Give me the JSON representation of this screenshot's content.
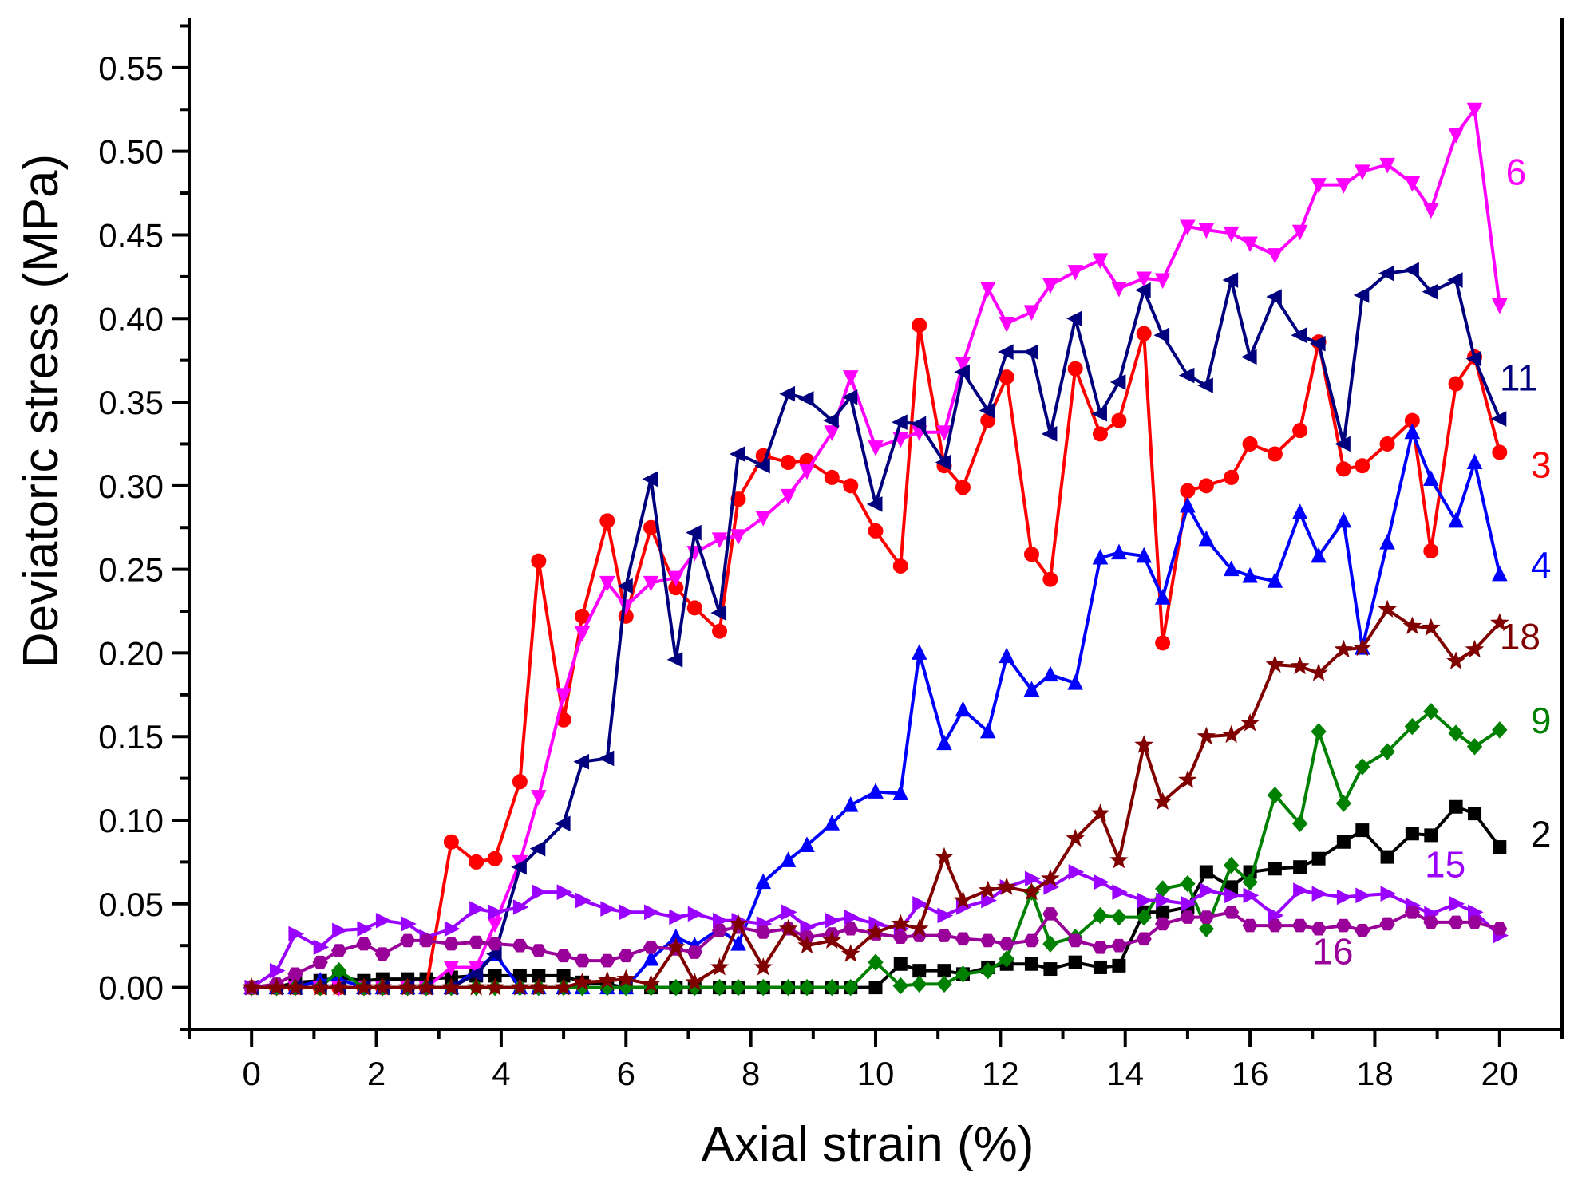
{
  "chart_data": {
    "type": "line",
    "title": "",
    "xlabel": "Axial strain (%)",
    "ylabel": "Deviatoric stress (MPa)",
    "xlim": [
      -1,
      21
    ],
    "ylim": [
      -0.025,
      0.58
    ],
    "xticks": [
      0,
      2,
      4,
      6,
      8,
      10,
      12,
      14,
      16,
      18,
      20
    ],
    "xtick_labels": [
      "0",
      "2",
      "4",
      "6",
      "8",
      "10",
      "12",
      "14",
      "16",
      "18",
      "20"
    ],
    "yticks": [
      0,
      0.05,
      0.1,
      0.15,
      0.2,
      0.25,
      0.3,
      0.35,
      0.4,
      0.45,
      0.5,
      0.55
    ],
    "ytick_labels": [
      "0.00",
      "0.05",
      "0.10",
      "0.15",
      "0.20",
      "0.25",
      "0.30",
      "0.35",
      "0.40",
      "0.45",
      "0.50",
      "0.55"
    ],
    "grid": false,
    "legend": "labels at line ends",
    "series": [
      {
        "name": "2",
        "label": "2",
        "color": "#000000",
        "marker": "square",
        "label_at": [
          20.5,
          0.084
        ],
        "x": [
          0,
          0.4,
          0.7,
          1.1,
          1.4,
          1.8,
          2.1,
          2.5,
          2.8,
          3.2,
          3.6,
          3.9,
          4.3,
          4.6,
          5.0,
          5.3,
          5.7,
          6.0,
          6.4,
          6.8,
          7.1,
          7.5,
          7.8,
          8.2,
          8.6,
          8.9,
          9.3,
          9.6,
          10.0,
          10.4,
          10.7,
          11.1,
          11.4,
          11.8,
          12.1,
          12.5,
          12.8,
          13.2,
          13.6,
          13.9,
          14.3,
          14.6,
          15.0,
          15.3,
          15.7,
          16.0,
          16.4,
          16.8,
          17.1,
          17.5,
          17.8,
          18.2,
          18.6,
          18.9,
          19.3,
          19.6,
          20.0
        ],
        "y": [
          0,
          0,
          0.003,
          0.004,
          0.006,
          0.004,
          0.005,
          0.005,
          0.005,
          0.006,
          0.007,
          0.007,
          0.007,
          0.007,
          0.007,
          0.003,
          0.002,
          0,
          0,
          0,
          0,
          0,
          0,
          0,
          0,
          0,
          0,
          0,
          0,
          0.014,
          0.01,
          0.01,
          0.008,
          0.012,
          0.014,
          0.014,
          0.011,
          0.015,
          0.012,
          0.013,
          0.045,
          0.045,
          0.048,
          0.069,
          0.06,
          0.069,
          0.071,
          0.072,
          0.077,
          0.087,
          0.094,
          0.078,
          0.092,
          0.091,
          0.108,
          0.104,
          0.084
        ]
      },
      {
        "name": "3",
        "label": "3",
        "color": "#ff0000",
        "marker": "circle",
        "label_at": [
          20.5,
          0.305
        ],
        "x": [
          0,
          0.4,
          0.7,
          1.1,
          1.4,
          1.8,
          2.1,
          2.5,
          2.8,
          3.2,
          3.6,
          3.9,
          4.3,
          4.6,
          5.0,
          5.3,
          5.7,
          6.0,
          6.4,
          6.8,
          7.1,
          7.5,
          7.8,
          8.2,
          8.6,
          8.9,
          9.3,
          9.6,
          10.0,
          10.4,
          10.7,
          11.1,
          11.4,
          11.8,
          12.1,
          12.5,
          12.8,
          13.2,
          13.6,
          13.9,
          14.3,
          14.6,
          15.0,
          15.3,
          15.7,
          16.0,
          16.4,
          16.8,
          17.1,
          17.5,
          17.8,
          18.2,
          18.6,
          18.9,
          19.3,
          19.6,
          20.0
        ],
        "y": [
          0,
          0,
          0,
          0,
          0,
          0,
          0,
          0,
          0,
          0.087,
          0.075,
          0.077,
          0.123,
          0.255,
          0.16,
          0.222,
          0.279,
          0.222,
          0.275,
          0.239,
          0.227,
          0.213,
          0.292,
          0.318,
          0.314,
          0.315,
          0.305,
          0.3,
          0.273,
          0.252,
          0.396,
          0.312,
          0.299,
          0.339,
          0.365,
          0.259,
          0.244,
          0.37,
          0.331,
          0.339,
          0.391,
          0.206,
          0.297,
          0.3,
          0.305,
          0.325,
          0.319,
          0.333,
          0.386,
          0.31,
          0.312,
          0.325,
          0.339,
          0.261,
          0.361,
          0.377,
          0.32
        ]
      },
      {
        "name": "4",
        "label": "4",
        "color": "#0000ff",
        "marker": "triangle-up",
        "label_at": [
          20.5,
          0.245
        ],
        "x": [
          0,
          0.4,
          0.7,
          1.1,
          1.4,
          1.8,
          2.1,
          2.5,
          2.8,
          3.2,
          3.6,
          3.9,
          4.3,
          4.6,
          5.0,
          5.3,
          5.7,
          6.0,
          6.4,
          6.8,
          7.1,
          7.5,
          7.8,
          8.2,
          8.6,
          8.9,
          9.3,
          9.6,
          10.0,
          10.4,
          10.7,
          11.1,
          11.4,
          11.8,
          12.1,
          12.5,
          12.8,
          13.2,
          13.6,
          13.9,
          14.3,
          14.6,
          15.0,
          15.3,
          15.7,
          16.0,
          16.4,
          16.8,
          17.1,
          17.5,
          17.8,
          18.2,
          18.6,
          18.9,
          19.3,
          19.6,
          20.0
        ],
        "y": [
          0,
          0,
          0,
          0.004,
          0.005,
          0,
          0,
          0,
          0,
          0,
          0.01,
          0.02,
          0,
          0,
          0,
          0,
          0,
          0,
          0.017,
          0.03,
          0.025,
          0.035,
          0.026,
          0.063,
          0.076,
          0.085,
          0.098,
          0.109,
          0.117,
          0.116,
          0.2,
          0.146,
          0.166,
          0.153,
          0.198,
          0.178,
          0.187,
          0.182,
          0.257,
          0.26,
          0.258,
          0.233,
          0.288,
          0.268,
          0.25,
          0.246,
          0.243,
          0.284,
          0.258,
          0.279,
          0.203,
          0.266,
          0.332,
          0.304,
          0.279,
          0.314,
          0.247
        ]
      },
      {
        "name": "6",
        "label": "6",
        "color": "#ff00ff",
        "marker": "triangle-down",
        "label_at": [
          20.1,
          0.48
        ],
        "x": [
          0,
          0.4,
          0.7,
          1.1,
          1.4,
          1.8,
          2.1,
          2.5,
          2.8,
          3.2,
          3.6,
          3.9,
          4.3,
          4.6,
          5.0,
          5.3,
          5.7,
          6.0,
          6.4,
          6.8,
          7.1,
          7.5,
          7.8,
          8.2,
          8.6,
          8.9,
          9.3,
          9.6,
          10.0,
          10.4,
          10.7,
          11.1,
          11.4,
          11.8,
          12.1,
          12.5,
          12.8,
          13.2,
          13.6,
          13.9,
          14.3,
          14.6,
          15.0,
          15.3,
          15.7,
          16.0,
          16.4,
          16.8,
          17.1,
          17.5,
          17.8,
          18.2,
          18.6,
          18.9,
          19.3,
          19.6,
          20.0
        ],
        "y": [
          0,
          0,
          0,
          0,
          0,
          0,
          0,
          0,
          0,
          0.012,
          0.012,
          0.038,
          0.075,
          0.114,
          0.175,
          0.212,
          0.242,
          0.228,
          0.242,
          0.245,
          0.26,
          0.268,
          0.27,
          0.281,
          0.294,
          0.309,
          0.332,
          0.365,
          0.323,
          0.328,
          0.332,
          0.332,
          0.373,
          0.418,
          0.397,
          0.404,
          0.42,
          0.428,
          0.435,
          0.418,
          0.424,
          0.423,
          0.455,
          0.453,
          0.451,
          0.445,
          0.438,
          0.452,
          0.48,
          0.48,
          0.488,
          0.492,
          0.481,
          0.465,
          0.51,
          0.525,
          0.408
        ]
      },
      {
        "name": "9",
        "label": "9",
        "color": "#008000",
        "marker": "diamond",
        "label_at": [
          20.5,
          0.152
        ],
        "x": [
          0,
          0.4,
          0.7,
          1.1,
          1.4,
          1.8,
          2.1,
          2.5,
          2.8,
          3.2,
          3.6,
          3.9,
          4.3,
          4.6,
          5.0,
          5.3,
          5.7,
          6.0,
          6.4,
          6.8,
          7.1,
          7.5,
          7.8,
          8.2,
          8.6,
          8.9,
          9.3,
          9.6,
          10.0,
          10.4,
          10.7,
          11.1,
          11.4,
          11.8,
          12.1,
          12.5,
          12.8,
          13.2,
          13.6,
          13.9,
          14.3,
          14.6,
          15.0,
          15.3,
          15.7,
          16.0,
          16.4,
          16.8,
          17.1,
          17.5,
          17.8,
          18.2,
          18.6,
          18.9,
          19.3,
          19.6,
          20.0
        ],
        "y": [
          0,
          0,
          0,
          0,
          0.01,
          0,
          0,
          0,
          0,
          0,
          0,
          0,
          0,
          0,
          0,
          0,
          0,
          0,
          0,
          0,
          0,
          0,
          0,
          0,
          0,
          0,
          0,
          0,
          0.015,
          0.001,
          0.002,
          0.002,
          0.008,
          0.01,
          0.017,
          0.057,
          0.026,
          0.03,
          0.043,
          0.042,
          0.042,
          0.059,
          0.062,
          0.035,
          0.073,
          0.063,
          0.115,
          0.098,
          0.153,
          0.11,
          0.132,
          0.141,
          0.156,
          0.165,
          0.152,
          0.144,
          0.154
        ]
      },
      {
        "name": "11",
        "label": "11",
        "color": "#00007f",
        "marker": "triangle-left",
        "label_at": [
          20.0,
          0.357
        ],
        "x": [
          0,
          0.4,
          0.7,
          1.1,
          1.4,
          1.8,
          2.1,
          2.5,
          2.8,
          3.2,
          3.6,
          3.9,
          4.3,
          4.6,
          5.0,
          5.3,
          5.7,
          6.0,
          6.4,
          6.8,
          7.1,
          7.5,
          7.8,
          8.2,
          8.6,
          8.9,
          9.3,
          9.6,
          10.0,
          10.4,
          10.7,
          11.1,
          11.4,
          11.8,
          12.1,
          12.5,
          12.8,
          13.2,
          13.6,
          13.9,
          14.3,
          14.6,
          15.0,
          15.3,
          15.7,
          16.0,
          16.4,
          16.8,
          17.1,
          17.5,
          17.8,
          18.2,
          18.6,
          18.9,
          19.3,
          19.6,
          20.0
        ],
        "y": [
          0,
          0,
          0,
          0,
          0,
          0,
          0,
          0,
          0,
          0,
          0.008,
          0.02,
          0.072,
          0.083,
          0.098,
          0.135,
          0.137,
          0.24,
          0.304,
          0.196,
          0.272,
          0.224,
          0.319,
          0.312,
          0.355,
          0.352,
          0.339,
          0.353,
          0.289,
          0.338,
          0.337,
          0.314,
          0.368,
          0.345,
          0.38,
          0.38,
          0.331,
          0.4,
          0.343,
          0.362,
          0.417,
          0.39,
          0.366,
          0.36,
          0.423,
          0.377,
          0.413,
          0.39,
          0.385,
          0.325,
          0.414,
          0.427,
          0.429,
          0.416,
          0.423,
          0.376,
          0.34
        ]
      },
      {
        "name": "15",
        "label": "15",
        "color": "#9900ff",
        "marker": "triangle-right",
        "label_at": [
          18.8,
          0.066
        ],
        "x": [
          0,
          0.4,
          0.7,
          1.1,
          1.4,
          1.8,
          2.1,
          2.5,
          2.8,
          3.2,
          3.6,
          3.9,
          4.3,
          4.6,
          5.0,
          5.3,
          5.7,
          6.0,
          6.4,
          6.8,
          7.1,
          7.5,
          7.8,
          8.2,
          8.6,
          8.9,
          9.3,
          9.6,
          10.0,
          10.4,
          10.7,
          11.1,
          11.4,
          11.8,
          12.1,
          12.5,
          12.8,
          13.2,
          13.6,
          13.9,
          14.3,
          14.6,
          15.0,
          15.3,
          15.7,
          16.0,
          16.4,
          16.8,
          17.1,
          17.5,
          17.8,
          18.2,
          18.6,
          18.9,
          19.3,
          19.6,
          20.0
        ],
        "y": [
          0,
          0.01,
          0.032,
          0.024,
          0.034,
          0.035,
          0.04,
          0.038,
          0.03,
          0.035,
          0.047,
          0.045,
          0.048,
          0.057,
          0.057,
          0.052,
          0.047,
          0.045,
          0.045,
          0.042,
          0.044,
          0.04,
          0.04,
          0.038,
          0.045,
          0.036,
          0.04,
          0.042,
          0.038,
          0.035,
          0.05,
          0.043,
          0.048,
          0.052,
          0.06,
          0.065,
          0.06,
          0.069,
          0.063,
          0.057,
          0.052,
          0.052,
          0.05,
          0.058,
          0.055,
          0.055,
          0.043,
          0.058,
          0.056,
          0.054,
          0.055,
          0.056,
          0.049,
          0.044,
          0.05,
          0.045,
          0.031
        ]
      },
      {
        "name": "16",
        "label": "16",
        "color": "#990099",
        "marker": "hexagon",
        "label_at": [
          17.0,
          0.014
        ],
        "x": [
          0,
          0.4,
          0.7,
          1.1,
          1.4,
          1.8,
          2.1,
          2.5,
          2.8,
          3.2,
          3.6,
          3.9,
          4.3,
          4.6,
          5.0,
          5.3,
          5.7,
          6.0,
          6.4,
          6.8,
          7.1,
          7.5,
          7.8,
          8.2,
          8.6,
          8.9,
          9.3,
          9.6,
          10.0,
          10.4,
          10.7,
          11.1,
          11.4,
          11.8,
          12.1,
          12.5,
          12.8,
          13.2,
          13.6,
          13.9,
          14.3,
          14.6,
          15.0,
          15.3,
          15.7,
          16.0,
          16.4,
          16.8,
          17.1,
          17.5,
          17.8,
          18.2,
          18.6,
          18.9,
          19.3,
          19.6,
          20.0
        ],
        "y": [
          0,
          0.002,
          0.008,
          0.015,
          0.022,
          0.026,
          0.02,
          0.028,
          0.028,
          0.026,
          0.027,
          0.026,
          0.025,
          0.022,
          0.019,
          0.016,
          0.016,
          0.019,
          0.024,
          0.023,
          0.021,
          0.034,
          0.036,
          0.033,
          0.035,
          0.03,
          0.032,
          0.035,
          0.032,
          0.03,
          0.031,
          0.031,
          0.029,
          0.028,
          0.026,
          0.028,
          0.044,
          0.028,
          0.024,
          0.025,
          0.029,
          0.038,
          0.042,
          0.042,
          0.045,
          0.037,
          0.037,
          0.037,
          0.035,
          0.037,
          0.034,
          0.038,
          0.045,
          0.039,
          0.039,
          0.039,
          0.035
        ]
      },
      {
        "name": "18",
        "label": "18",
        "color": "#800000",
        "marker": "star",
        "label_at": [
          20.0,
          0.202
        ],
        "x": [
          0,
          0.4,
          0.7,
          1.1,
          1.4,
          1.8,
          2.1,
          2.5,
          2.8,
          3.2,
          3.6,
          3.9,
          4.3,
          4.6,
          5.0,
          5.3,
          5.7,
          6.0,
          6.4,
          6.8,
          7.1,
          7.5,
          7.8,
          8.2,
          8.6,
          8.9,
          9.3,
          9.6,
          10.0,
          10.4,
          10.7,
          11.1,
          11.4,
          11.8,
          12.1,
          12.5,
          12.8,
          13.2,
          13.6,
          13.9,
          14.3,
          14.6,
          15.0,
          15.3,
          15.7,
          16.0,
          16.4,
          16.8,
          17.1,
          17.5,
          17.8,
          18.2,
          18.6,
          18.9,
          19.3,
          19.6,
          20.0
        ],
        "y": [
          0,
          0,
          0,
          0,
          0,
          0,
          0,
          0,
          0,
          0,
          0,
          0,
          0,
          0,
          0,
          0.003,
          0.004,
          0.005,
          0.002,
          0.024,
          0.003,
          0.012,
          0.038,
          0.012,
          0.035,
          0.025,
          0.028,
          0.02,
          0.033,
          0.038,
          0.035,
          0.078,
          0.052,
          0.058,
          0.06,
          0.057,
          0.065,
          0.089,
          0.104,
          0.076,
          0.145,
          0.111,
          0.124,
          0.15,
          0.151,
          0.158,
          0.193,
          0.192,
          0.188,
          0.202,
          0.203,
          0.226,
          0.216,
          0.215,
          0.195,
          0.202,
          0.218
        ]
      }
    ]
  }
}
